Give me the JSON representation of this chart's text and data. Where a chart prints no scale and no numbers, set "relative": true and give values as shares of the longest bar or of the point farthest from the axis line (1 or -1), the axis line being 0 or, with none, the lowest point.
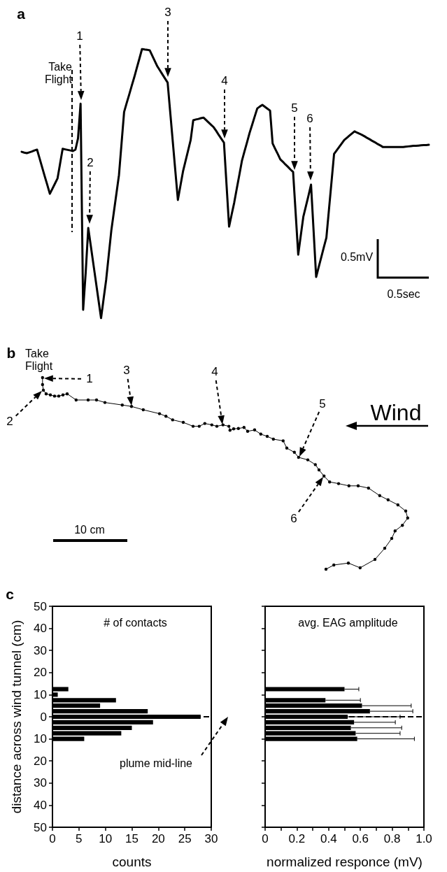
{
  "chart_data": [
    {
      "type": "line",
      "relative": true,
      "marker": "none",
      "color": "#000000",
      "categories": [
        null,
        null,
        null,
        null,
        null,
        null,
        null,
        null,
        null,
        null,
        null,
        null,
        null,
        null,
        null,
        null,
        null,
        null,
        null,
        null,
        null,
        null,
        null,
        null,
        null,
        null,
        null,
        null,
        null,
        null,
        null,
        null,
        null,
        null,
        null,
        null,
        null,
        null,
        null,
        null,
        null,
        null,
        null,
        null,
        null,
        null,
        null,
        null,
        null,
        null,
        null,
        null,
        null,
        null,
        null,
        null,
        null,
        null,
        null,
        null,
        null,
        null,
        null,
        null,
        null,
        null,
        null,
        null,
        null,
        null,
        null,
        null,
        null,
        null,
        null,
        null,
        null,
        null,
        null,
        null,
        null,
        null,
        null,
        null,
        null,
        null,
        null,
        null,
        null,
        null,
        null,
        null,
        null,
        null,
        null,
        null,
        null,
        null,
        null,
        null,
        null,
        null,
        null,
        null,
        null,
        null,
        null,
        null,
        null,
        null,
        null,
        null,
        null,
        null,
        null,
        null,
        null,
        null,
        null,
        null,
        null,
        null,
        null,
        null,
        null,
        null,
        null,
        null,
        null,
        null,
        null,
        null,
        null,
        null,
        null,
        null,
        null,
        null,
        null,
        null,
        null,
        null,
        null,
        null,
        null,
        null,
        null,
        null,
        null,
        null,
        null,
        null,
        null,
        null,
        null,
        null,
        null,
        null,
        null,
        null
      ],
      "values": [
        0.618,
        0.615,
        0.613,
        0.616,
        0.619,
        0.623,
        0.626,
        0.593,
        0.56,
        0.527,
        0.495,
        0.462,
        0.481,
        0.5,
        0.519,
        0.574,
        0.629,
        0.627,
        0.625,
        0.623,
        0.621,
        0.626,
        0.668,
        0.797,
        0.031,
        0.169,
        0.335,
        0.268,
        0.201,
        0.134,
        0.067,
        0,
        0.072,
        0.143,
        0.234,
        0.325,
        0.394,
        0.463,
        0.532,
        0.649,
        0.766,
        0.799,
        0.831,
        0.864,
        0.896,
        0.931,
        0.965,
        1.0,
        0.998,
        0.997,
        0.995,
        0.975,
        0.955,
        0.935,
        0.92,
        0.905,
        0.89,
        0.875,
        0.766,
        0.657,
        0.548,
        0.439,
        0.492,
        0.545,
        0.584,
        0.623,
        0.662,
        0.735,
        0.738,
        0.74,
        0.743,
        0.745,
        0.736,
        0.727,
        0.718,
        0.709,
        0.695,
        0.68,
        0.666,
        0.652,
        0.496,
        0.34,
        0.385,
        0.429,
        0.481,
        0.532,
        0.584,
        0.619,
        0.653,
        0.688,
        0.718,
        0.749,
        0.779,
        0.786,
        0.792,
        0.785,
        0.778,
        0.771,
        0.649,
        0.629,
        0.61,
        0.59,
        0.581,
        0.571,
        0.562,
        0.552,
        0.543,
        0.39,
        0.236,
        0.307,
        0.377,
        0.416,
        0.455,
        0.496,
        0.325,
        0.153,
        0.19,
        0.226,
        0.263,
        0.299,
        0.403,
        0.506,
        0.61,
        0.623,
        0.636,
        0.649,
        0.662,
        0.67,
        0.678,
        0.686,
        0.694,
        0.689,
        0.685,
        0.68,
        0.675,
        0.669,
        0.664,
        0.658,
        0.653,
        0.647,
        0.642,
        0.636,
        0.636,
        0.636,
        0.636,
        0.636,
        0.636,
        0.636,
        0.636,
        0.636,
        0.637,
        0.638,
        0.639,
        0.64,
        0.64,
        0.641,
        0.642,
        0.643,
        0.643,
        0.644
      ],
      "annotations": [
        "a",
        "Take Flight",
        "1",
        "2",
        "3",
        "4",
        "5",
        "6",
        "0.5mV",
        "0.5sec"
      ]
    },
    {
      "type": "other",
      "annotations": [
        "b",
        "Take Flight",
        "1",
        "2",
        "3",
        "4",
        "5",
        "6",
        "Wind",
        "10 cm"
      ]
    },
    {
      "type": "bar",
      "orientation": "horizontal",
      "title": "# of contacts",
      "xlabel": "counts",
      "ylabel": "distance across wind tunnel (cm)",
      "color": "#000000",
      "x": [
        12.5,
        10,
        7.5,
        5,
        2.5,
        0,
        -2.5,
        -5,
        -7.5,
        -10
      ],
      "values": [
        3,
        1,
        12,
        9,
        18,
        28,
        19,
        15,
        13,
        6
      ],
      "xlim": [
        0,
        30
      ],
      "xticks": [
        0,
        5,
        10,
        15,
        20,
        25,
        30
      ],
      "ylim": [
        -50,
        50
      ],
      "yticks": [
        {
          "value": -50,
          "label": "50"
        },
        {
          "value": -40,
          "label": "40"
        },
        {
          "value": -30,
          "label": "30"
        },
        {
          "value": -20,
          "label": "20"
        },
        {
          "value": -10,
          "label": "10"
        },
        0,
        10,
        20,
        30,
        40,
        50
      ],
      "ref_lines": [
        {
          "axis": "y",
          "value": 0,
          "label": "plume mid-line",
          "line_style": "dashed"
        }
      ],
      "annotations": [
        "c"
      ]
    },
    {
      "type": "bar",
      "orientation": "horizontal",
      "title": "avg. EAG amplitude",
      "xlabel": "normalized responce (mV)",
      "color": "#000000",
      "tick_labels": "x",
      "x": [
        12.5,
        10,
        7.5,
        5,
        2.5,
        0,
        -2.5,
        -5,
        -7.5,
        -10
      ],
      "values": [
        0.5,
        null,
        0.38,
        0.61,
        0.66,
        0.52,
        0.56,
        0.54,
        0.57,
        0.58
      ],
      "errors": [
        [
          0.5,
          0.59
        ],
        null,
        [
          0.38,
          0.6
        ],
        [
          0.61,
          0.92
        ],
        [
          0.66,
          0.93
        ],
        [
          0.52,
          0.85
        ],
        [
          0.56,
          0.82
        ],
        [
          0.54,
          0.86
        ],
        [
          0.57,
          0.85
        ],
        [
          0.58,
          0.94
        ]
      ],
      "xlim": [
        0,
        1
      ],
      "xticks": [
        0,
        {
          "value": 0.1,
          "label": null
        },
        0.2,
        {
          "value": 0.3,
          "label": null
        },
        0.4,
        {
          "value": 0.5,
          "label": null
        },
        0.6,
        {
          "value": 0.7,
          "label": null
        },
        0.8,
        {
          "value": 0.9,
          "label": null
        },
        {
          "value": 1,
          "label": "1.0"
        }
      ],
      "ylim": [
        -50,
        50
      ],
      "yticks": [
        -50,
        -40,
        -30,
        -20,
        -10,
        0,
        10,
        20,
        30,
        40,
        50
      ],
      "ref_lines": [
        {
          "axis": "y",
          "value": 0,
          "line_style": "dashed"
        }
      ]
    }
  ]
}
